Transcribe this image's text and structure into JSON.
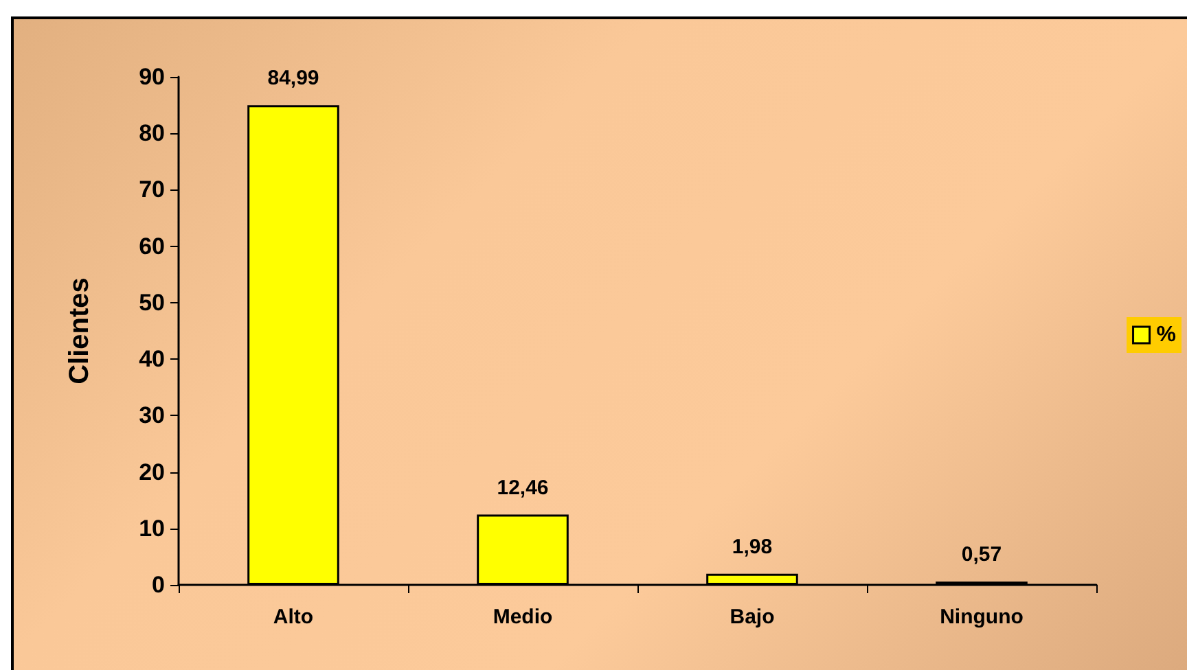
{
  "chart_data": {
    "type": "bar",
    "ylabel": "Clientes",
    "categories": [
      "Alto",
      "Medio",
      "Bajo",
      "Ninguno"
    ],
    "series": [
      {
        "name": "%",
        "color": "#ffff00",
        "values": [
          84.99,
          12.46,
          1.98,
          0.57
        ],
        "value_labels": [
          "84,99",
          "12,46",
          "1,98",
          "0,57"
        ]
      }
    ],
    "ylim": [
      0,
      90
    ],
    "yticks": [
      0,
      10,
      20,
      30,
      40,
      50,
      60,
      70,
      80,
      90
    ],
    "grid": false,
    "legend": "right"
  }
}
